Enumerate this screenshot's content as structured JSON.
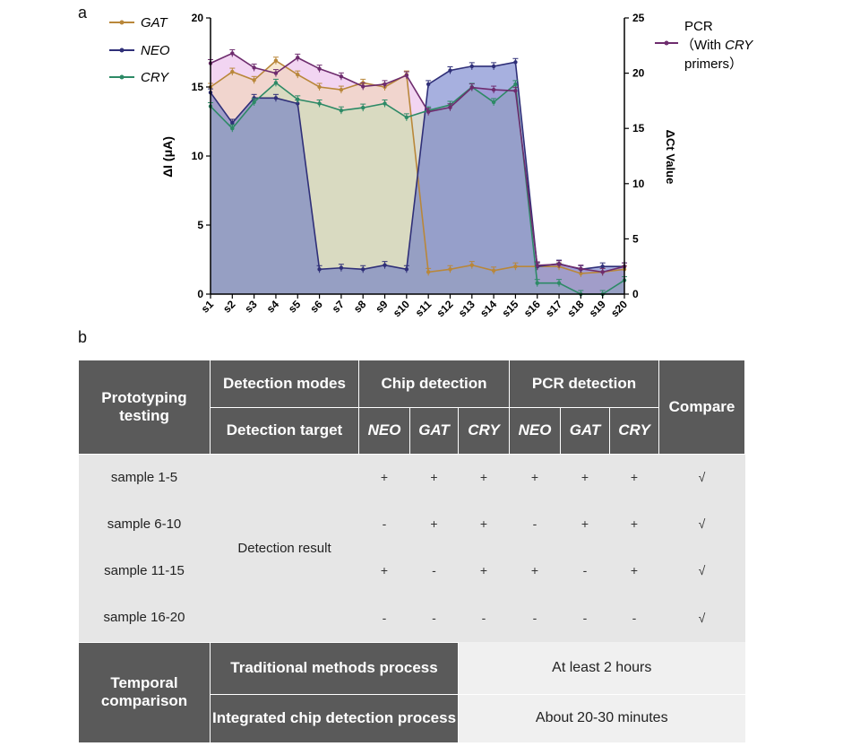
{
  "panel_a_label": "a",
  "panel_b_label": "b",
  "chart_data": {
    "type": "line",
    "categories": [
      "s1",
      "s2",
      "s3",
      "s4",
      "s5",
      "s6",
      "s7",
      "s8",
      "s9",
      "s10",
      "s11",
      "s12",
      "s13",
      "s14",
      "s15",
      "s16",
      "s17",
      "s18",
      "s19",
      "s20"
    ],
    "ylabel_left": "ΔI (μA)",
    "ylabel_right": "ΔCt Value",
    "ylim_left": [
      0,
      20
    ],
    "ylim_right": [
      0,
      25
    ],
    "yticks_left": [
      "0",
      "5",
      "10",
      "15",
      "20"
    ],
    "yticks_right": [
      "0",
      "5",
      "10",
      "15",
      "20",
      "25"
    ],
    "series": [
      {
        "name": "GAT",
        "axis": "left",
        "color": "#b9873a",
        "fill": "#f0d6b0",
        "values": [
          15.0,
          16.1,
          15.5,
          16.9,
          15.9,
          15.0,
          14.8,
          15.3,
          15.0,
          15.9,
          1.6,
          1.8,
          2.1,
          1.7,
          2.0,
          2.0,
          2.0,
          1.5,
          1.6,
          1.8
        ]
      },
      {
        "name": "NEO",
        "axis": "left",
        "color": "#2f2f78",
        "fill": "#5e6fc4",
        "values": [
          14.6,
          12.4,
          14.2,
          14.2,
          13.8,
          1.8,
          1.9,
          1.8,
          2.1,
          1.8,
          15.2,
          16.2,
          16.5,
          16.5,
          16.8,
          2.0,
          2.2,
          1.8,
          2.0,
          2.0
        ]
      },
      {
        "name": "CRY",
        "axis": "left",
        "color": "#2d8a66",
        "fill": "#c4dfb6",
        "values": [
          13.6,
          12.0,
          13.9,
          15.3,
          14.1,
          13.8,
          13.3,
          13.5,
          13.8,
          12.8,
          13.3,
          13.7,
          15.0,
          13.9,
          15.2,
          0.8,
          0.8,
          0.0,
          0.0,
          1.0
        ]
      },
      {
        "name": "PCR（With CRY primers）",
        "axis": "right",
        "color": "#6e2c6e",
        "fill": "#e8b2e8",
        "values": [
          20.9,
          21.8,
          20.5,
          20.0,
          21.4,
          20.4,
          19.7,
          18.8,
          19.0,
          19.8,
          16.5,
          16.9,
          18.7,
          18.5,
          18.4,
          2.6,
          2.7,
          2.3,
          2.0,
          2.5
        ]
      }
    ],
    "legend": [
      {
        "label": "GAT",
        "italic": true
      },
      {
        "label": "NEO",
        "italic": true
      },
      {
        "label": "CRY",
        "italic": true
      }
    ],
    "legend_right": {
      "line1": "PCR",
      "line2_pre": "（With ",
      "line2_it": "CRY",
      "line3": "primers）"
    }
  },
  "table": {
    "h_prototyping": "Prototyping testing",
    "h_modes": "Detection modes",
    "h_target": "Detection target",
    "h_chip": "Chip detection",
    "h_pcr": "PCR detection",
    "h_compare": "Compare",
    "targets": [
      "NEO",
      "GAT",
      "CRY",
      "NEO",
      "GAT",
      "CRY"
    ],
    "detection_result": "Detection result",
    "rows": [
      {
        "sample": "sample 1-5",
        "marks": [
          "+",
          "+",
          "+",
          "+",
          "+",
          "+"
        ],
        "compare": "√"
      },
      {
        "sample": "sample 6-10",
        "marks": [
          "-",
          "+",
          "+",
          "-",
          "+",
          "+"
        ],
        "compare": "√"
      },
      {
        "sample": "sample 11-15",
        "marks": [
          "+",
          "-",
          "+",
          "+",
          "-",
          "+"
        ],
        "compare": "√"
      },
      {
        "sample": "sample 16-20",
        "marks": [
          "-",
          "-",
          "-",
          "-",
          "-",
          "-"
        ],
        "compare": "√"
      }
    ],
    "temporal": "Temporal comparison",
    "traditional": "Traditional methods process",
    "traditional_time": "At least 2 hours",
    "integrated": "Integrated chip detection process",
    "integrated_time": "About 20-30 minutes"
  }
}
